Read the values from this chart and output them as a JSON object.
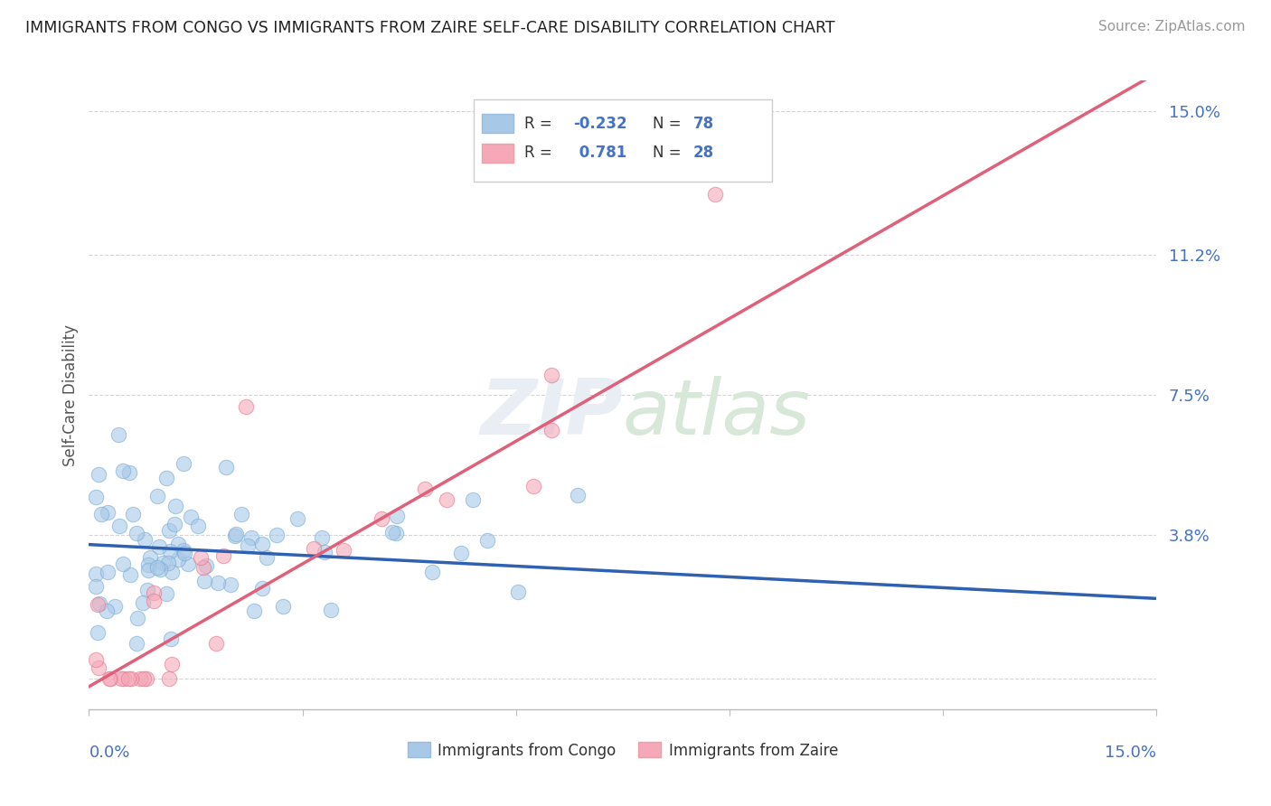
{
  "title": "IMMIGRANTS FROM CONGO VS IMMIGRANTS FROM ZAIRE SELF-CARE DISABILITY CORRELATION CHART",
  "source": "Source: ZipAtlas.com",
  "ylabel": "Self-Care Disability",
  "xmin": 0.0,
  "xmax": 0.15,
  "ymin": -0.008,
  "ymax": 0.158,
  "congo_color": "#a8c8e8",
  "zaire_color": "#f4a8b8",
  "congo_edge_color": "#7aaed4",
  "zaire_edge_color": "#e8788c",
  "congo_line_color": "#3060b0",
  "zaire_line_color": "#e0607a",
  "dash_line_color": "#aaccee",
  "background_color": "#ffffff",
  "grid_color": "#d0d0d0",
  "fig_width": 14.06,
  "fig_height": 8.92,
  "dpi": 100,
  "congo_slope": -0.095,
  "congo_intercept": 0.0355,
  "zaire_slope": 1.08,
  "zaire_intercept": -0.002,
  "congo_line_xstart": 0.0,
  "congo_line_xend": 0.15,
  "zaire_line_xstart": 0.0,
  "zaire_line_xend": 0.15,
  "dash_line_xstart": 0.085,
  "dash_line_xend": 0.15
}
